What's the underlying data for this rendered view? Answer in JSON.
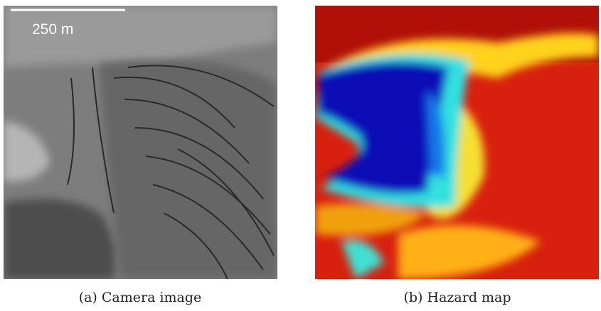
{
  "figure": {
    "panels": [
      {
        "scale_bar": "250 m",
        "caption": "(a) Camera image"
      },
      {
        "caption": "(b) Hazard map"
      }
    ]
  }
}
